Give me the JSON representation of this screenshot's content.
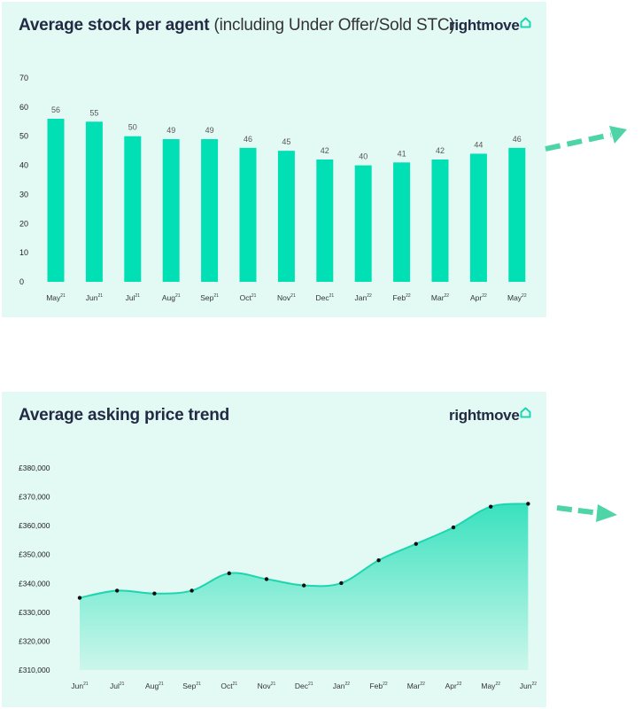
{
  "chart_data": [
    {
      "type": "bar",
      "title": "Average stock per agent",
      "subtitle": "(including Under Offer/Sold STC)",
      "categories": [
        "May",
        "Jun",
        "Jul",
        "Aug",
        "Sep",
        "Oct",
        "Nov",
        "Dec",
        "Jan",
        "Feb",
        "Mar",
        "Apr",
        "May"
      ],
      "category_years": [
        "21",
        "21",
        "21",
        "21",
        "21",
        "21",
        "21",
        "21",
        "22",
        "22",
        "22",
        "22",
        "22"
      ],
      "values": [
        56,
        55,
        50,
        49,
        49,
        46,
        45,
        42,
        40,
        41,
        42,
        44,
        46
      ],
      "yticks": [
        "70",
        "60",
        "50",
        "40",
        "30",
        "20",
        "10",
        "0"
      ],
      "ylim": [
        0,
        70
      ],
      "grid": false,
      "bar_color": "#00e0b4"
    },
    {
      "type": "area",
      "title": "Average asking price trend",
      "categories": [
        "Jun",
        "Jul",
        "Aug",
        "Sep",
        "Oct",
        "Nov",
        "Dec",
        "Jan",
        "Feb",
        "Mar",
        "Apr",
        "May",
        "Jun"
      ],
      "category_years": [
        "21",
        "21",
        "21",
        "21",
        "21",
        "21",
        "21",
        "22",
        "22",
        "22",
        "22",
        "22",
        "22"
      ],
      "values": [
        335000,
        337500,
        336500,
        337500,
        343500,
        341500,
        339300,
        340100,
        348000,
        353700,
        359400,
        366600,
        367600
      ],
      "yticks": [
        "£380,000",
        "£370,000",
        "£360,000",
        "£350,000",
        "£340,000",
        "£330,000",
        "£320,000",
        "£310,000"
      ],
      "ylim": [
        310000,
        380000
      ],
      "grid": false,
      "line_color": "#1dd6b0"
    }
  ],
  "logo": {
    "text": "rightmove"
  },
  "colors": {
    "panel_bg": "#e3faf4",
    "accent": "#00e0b4",
    "arrow": "#4ed4a6",
    "title": "#222a44"
  }
}
